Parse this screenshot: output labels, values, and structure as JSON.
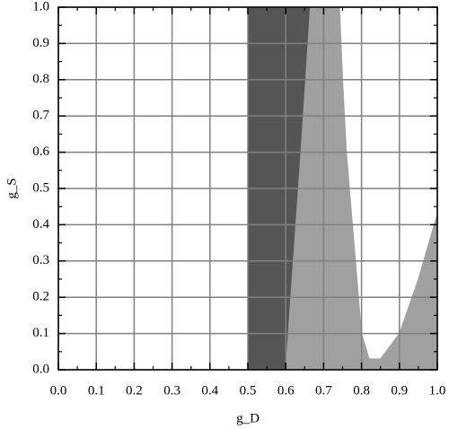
{
  "chart_data": {
    "type": "region",
    "xlabel": "g_D",
    "ylabel": "g_S",
    "series": [
      {
        "color": "#555555",
        "x": [
          0.5,
          0.6,
          0.62,
          0.64,
          0.665,
          0.5
        ],
        "values": [
          0.0,
          0.0,
          0.3,
          0.6,
          1.0,
          1.0
        ]
      },
      {
        "color": "#a0a0a0",
        "x": [
          0.6,
          1.0,
          1.0,
          0.95,
          0.9,
          0.85,
          0.82,
          0.8,
          0.78,
          0.76,
          0.75,
          0.742,
          0.665,
          0.64,
          0.62
        ],
        "values": [
          0.0,
          0.0,
          0.43,
          0.25,
          0.1,
          0.03,
          0.03,
          0.1,
          0.35,
          0.6,
          0.8,
          1.0,
          1.0,
          0.6,
          0.3
        ]
      }
    ],
    "xlim": [
      0,
      1
    ],
    "ylim": [
      0,
      1
    ],
    "xticks": [
      {
        "value": 0,
        "label": "0.0"
      },
      0.1,
      0.2,
      0.3,
      0.4,
      0.5,
      0.6,
      0.7,
      0.8,
      0.9,
      {
        "value": 1,
        "label": "1.0"
      }
    ],
    "yticks": [
      {
        "value": 0,
        "label": "0.0"
      },
      0.1,
      0.2,
      0.3,
      0.4,
      0.5,
      0.6,
      0.7,
      0.8,
      0.9,
      {
        "value": 1,
        "label": "1.0"
      }
    ],
    "xminor": [
      0.05,
      0.15,
      0.25,
      0.35,
      0.45,
      0.55,
      0.65,
      0.75,
      0.85,
      0.95
    ],
    "yminor": [
      0.05,
      0.15,
      0.25,
      0.35,
      0.45,
      0.55,
      0.65,
      0.75,
      0.85,
      0.95
    ],
    "grid": true
  }
}
